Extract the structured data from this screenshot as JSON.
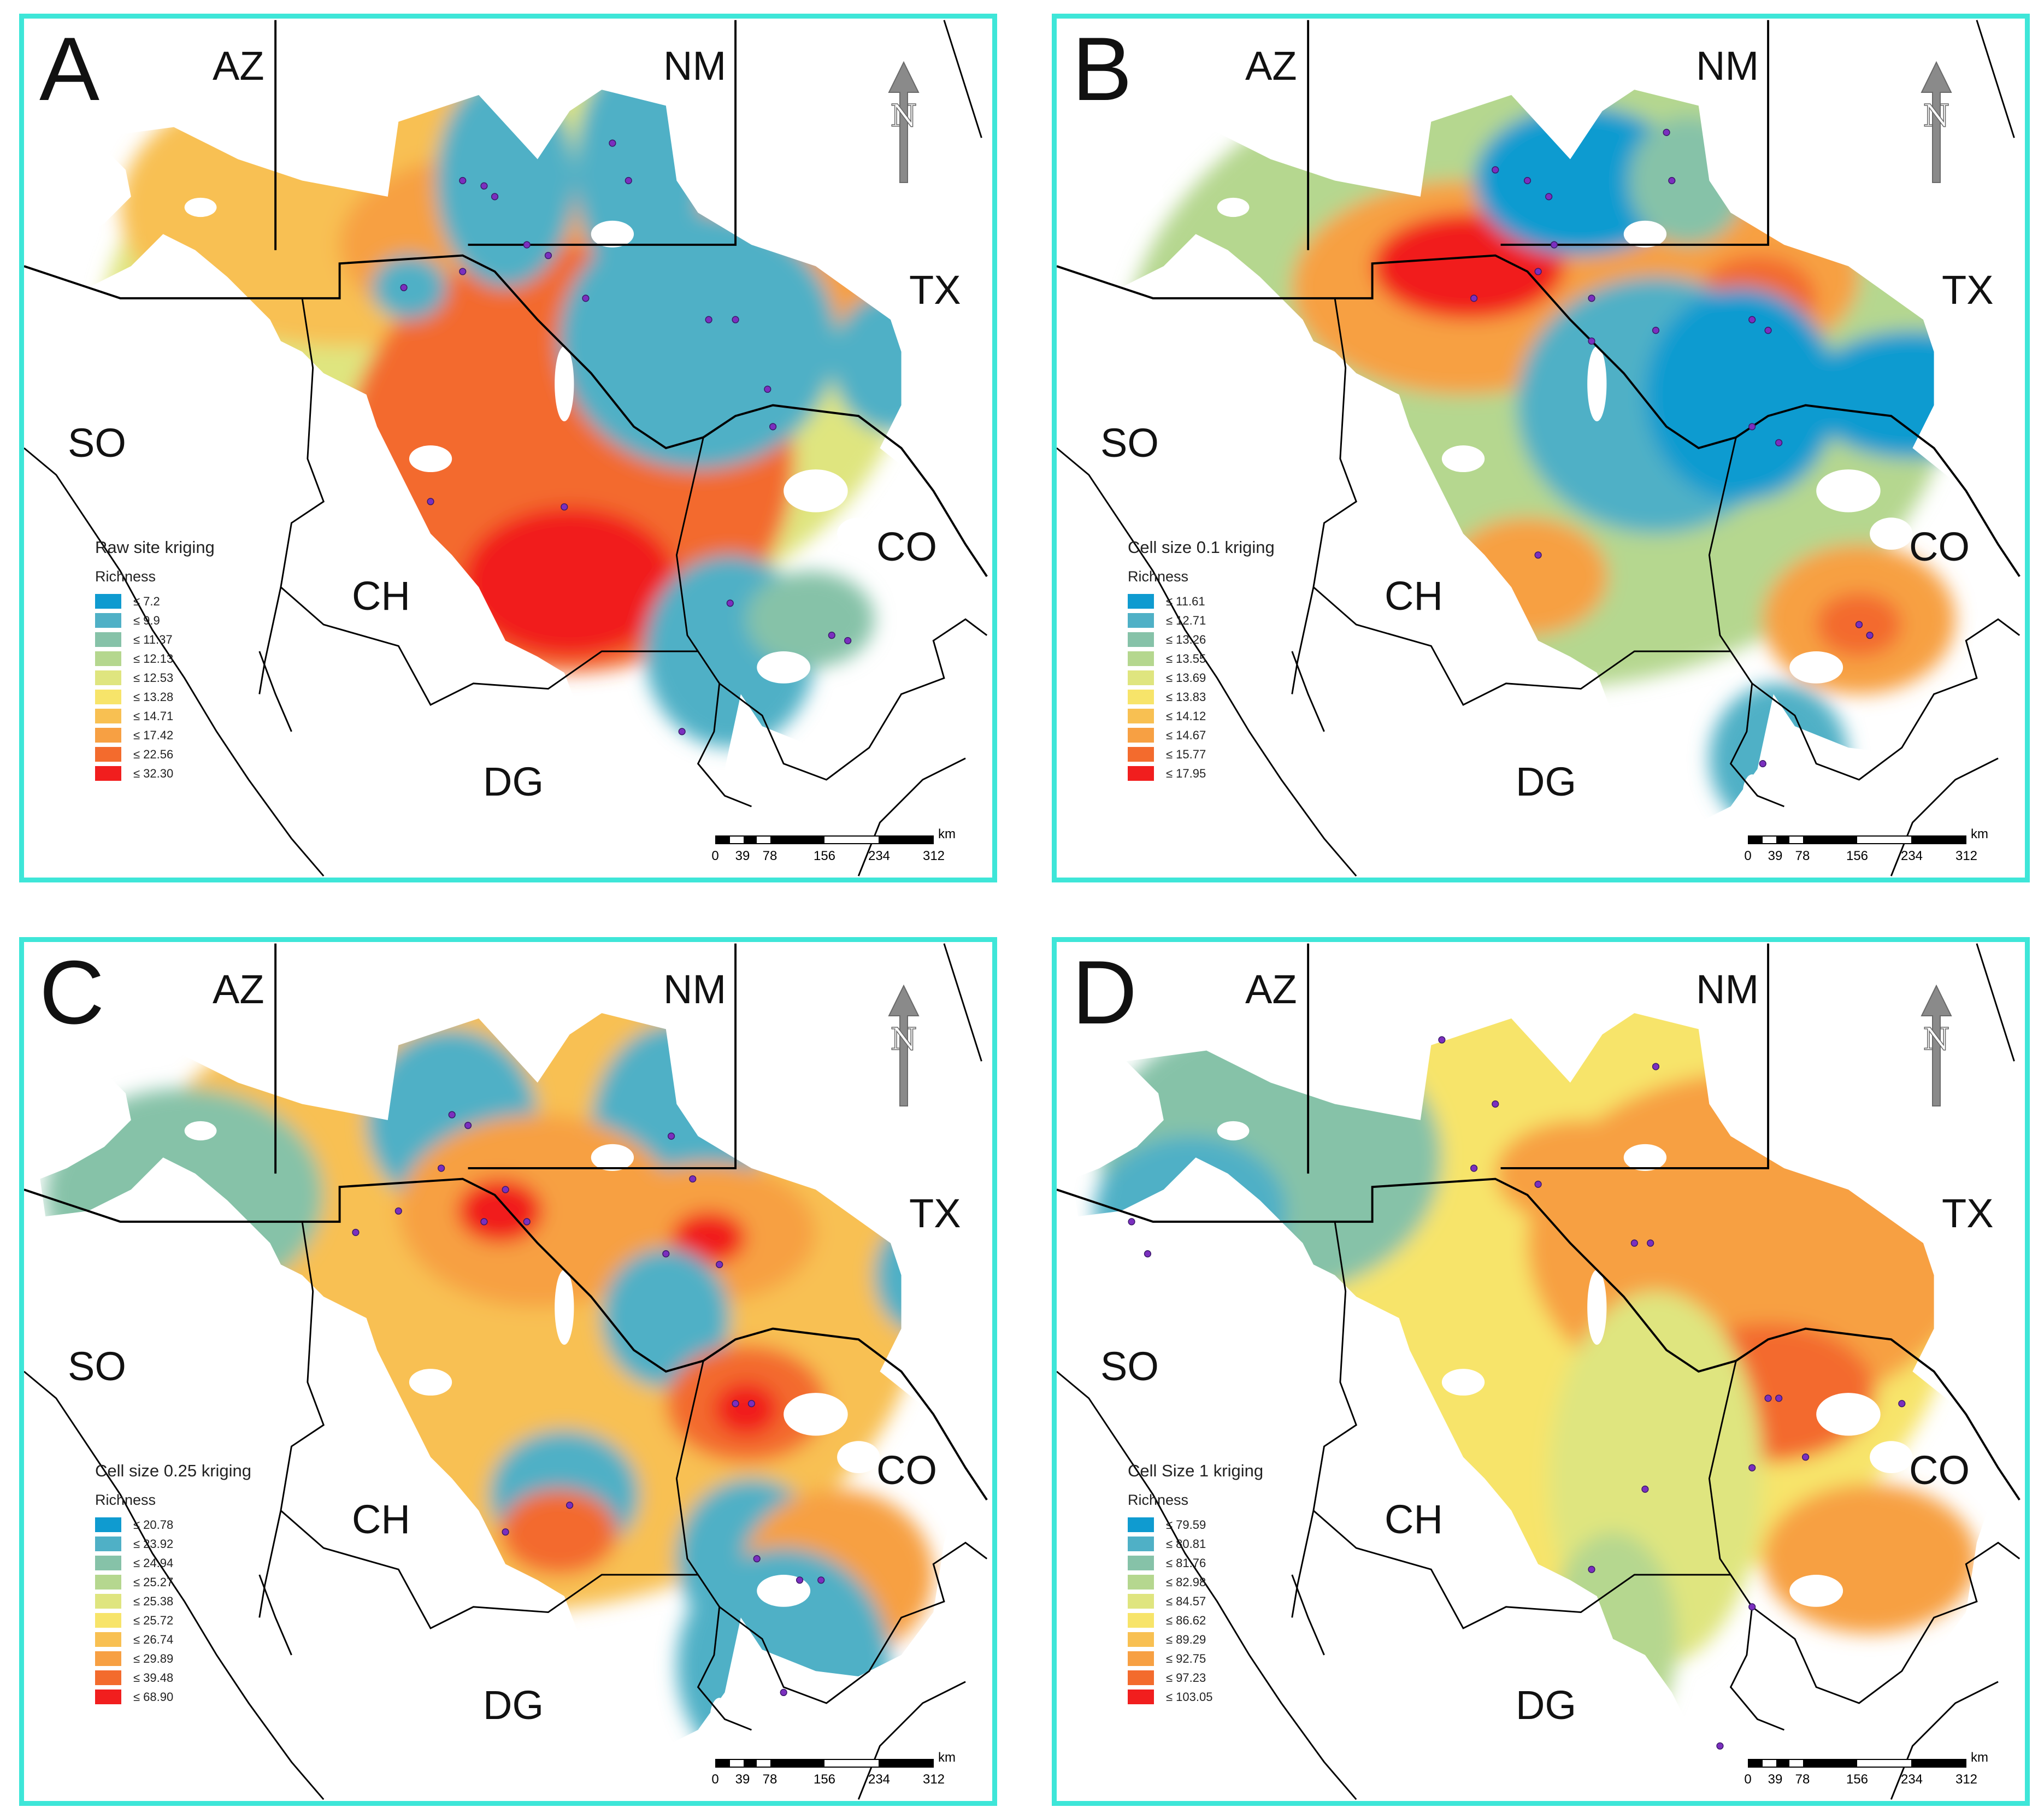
{
  "regions": [
    "AZ",
    "NM",
    "TX",
    "SO",
    "CH",
    "CO",
    "DG"
  ],
  "north_label": "N",
  "scale": {
    "unit": "km",
    "ticks": [
      "0",
      "39",
      "78",
      "156",
      "234",
      "312"
    ]
  },
  "colors": {
    "panel_border": "#3ee6d8",
    "classes": [
      "#0f9bd0",
      "#4fb0c6",
      "#86c2a8",
      "#b5d78f",
      "#dfe57f",
      "#f7e46a",
      "#f8c052",
      "#f7a043",
      "#f36b2d",
      "#f11e1e"
    ],
    "site_point": "#7b2fbf"
  },
  "panels": [
    {
      "letter": "A",
      "legend_title": "Raw site kriging",
      "legend_subtitle": "Richness",
      "classes": [
        "≤ 7.2",
        "≤ 9.9",
        "≤ 11.37",
        "≤ 12.13",
        "≤ 12.53",
        "≤ 13.28",
        "≤ 14.71",
        "≤ 17.42",
        "≤ 22.56",
        "≤ 32.30"
      ]
    },
    {
      "letter": "B",
      "legend_title": "Cell size 0.1 kriging",
      "legend_subtitle": "Richness",
      "classes": [
        "≤ 11.61",
        "≤ 12.71",
        "≤ 13.26",
        "≤ 13.55",
        "≤ 13.69",
        "≤ 13.83",
        "≤ 14.12",
        "≤ 14.67",
        "≤ 15.77",
        "≤ 17.95"
      ]
    },
    {
      "letter": "C",
      "legend_title": "Cell size 0.25 kriging",
      "legend_subtitle": "Richness",
      "classes": [
        "≤ 20.78",
        "≤ 23.92",
        "≤ 24.94",
        "≤ 25.27",
        "≤ 25.38",
        "≤ 25.72",
        "≤ 26.74",
        "≤ 29.89",
        "≤ 39.48",
        "≤ 68.90"
      ]
    },
    {
      "letter": "D",
      "legend_title": "Cell Size 1 kriging",
      "legend_subtitle": "Richness",
      "classes": [
        "≤ 79.59",
        "≤ 80.81",
        "≤ 81.76",
        "≤ 82.98",
        "≤ 84.57",
        "≤ 86.62",
        "≤ 89.29",
        "≤ 92.75",
        "≤ 97.23",
        "≤ 103.05"
      ]
    }
  ]
}
